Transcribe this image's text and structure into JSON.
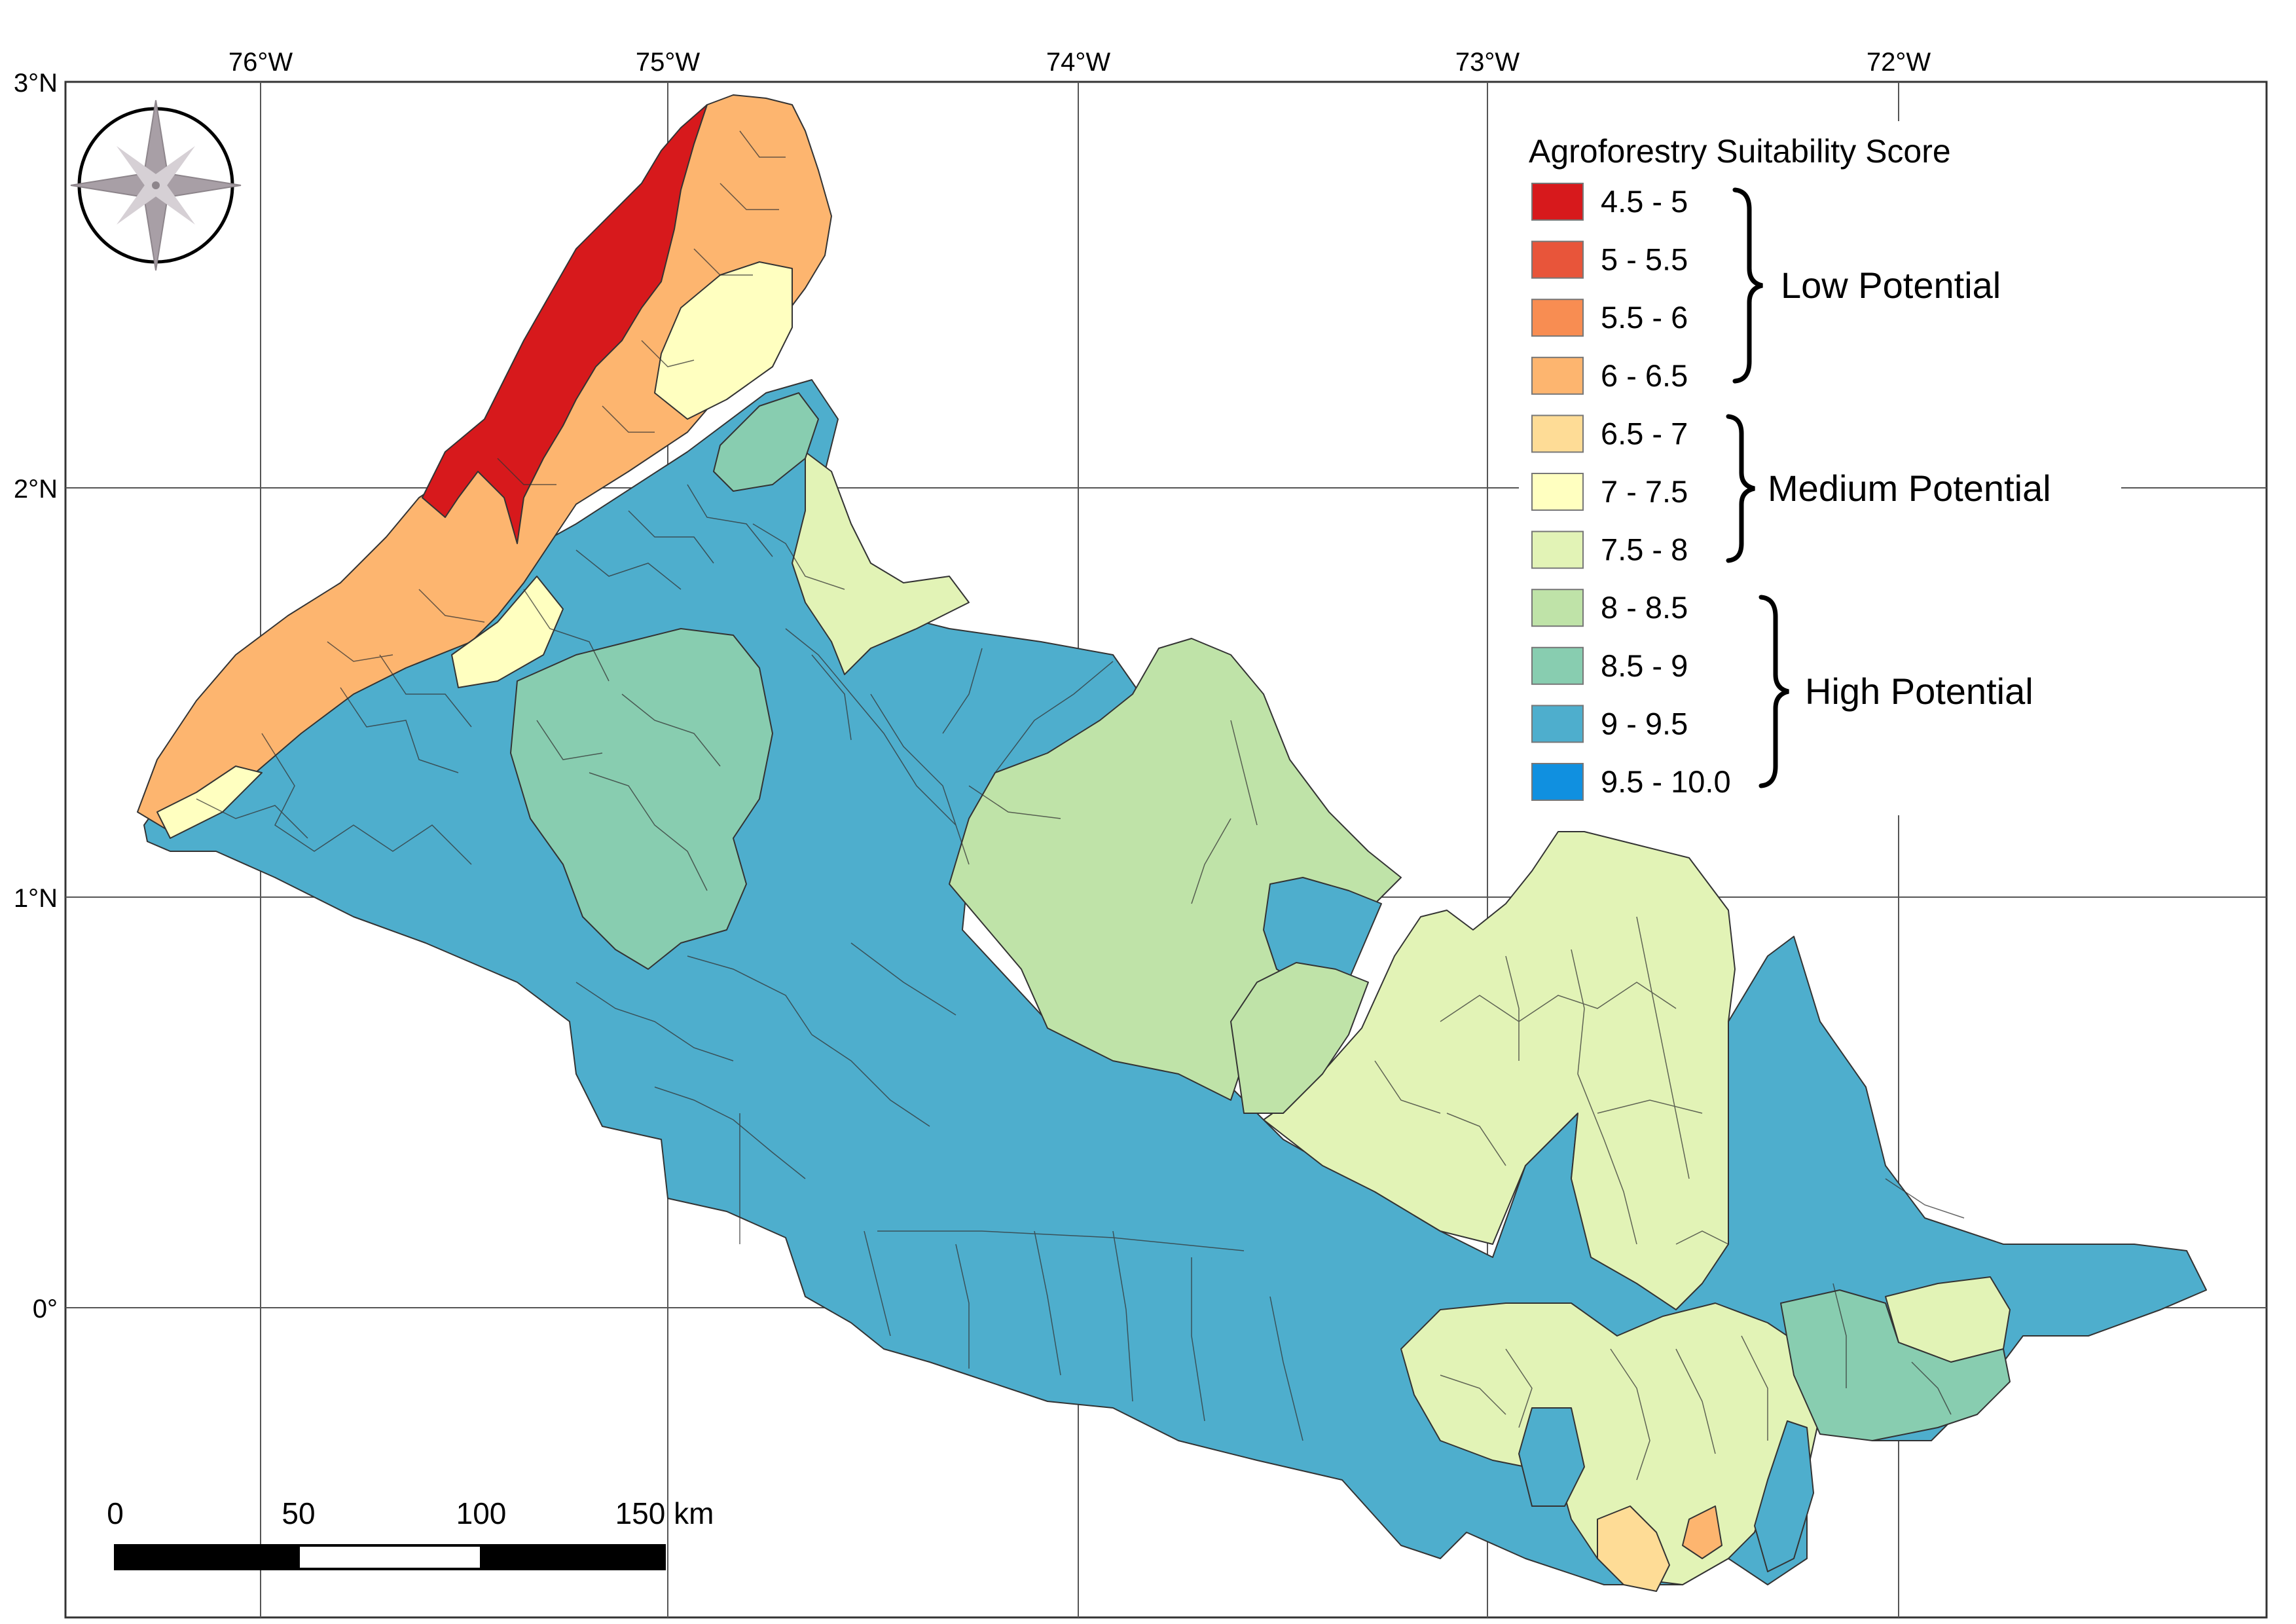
{
  "legend": {
    "title": "Agroforestry Suitability Score",
    "classes": [
      {
        "label": "4.5 - 5",
        "color": "#d7191c"
      },
      {
        "label": "5 - 5.5",
        "color": "#e8553a"
      },
      {
        "label": "5.5 - 6",
        "color": "#f88d52"
      },
      {
        "label": "6 - 6.5",
        "color": "#fdb56f"
      },
      {
        "label": "6.5 - 7",
        "color": "#fedc96"
      },
      {
        "label": "7 - 7.5",
        "color": "#ffffc0"
      },
      {
        "label": "7.5 - 8",
        "color": "#e2f3b6"
      },
      {
        "label": "8 - 8.5",
        "color": "#bfe3a8"
      },
      {
        "label": "8.5 - 9",
        "color": "#88cdb0"
      },
      {
        "label": "9 - 9.5",
        "color": "#4eaecd"
      },
      {
        "label": "9.5 - 10.0",
        "color": "#1090e0"
      }
    ],
    "groups": [
      {
        "label": "Low Potential"
      },
      {
        "label": "Medium Potential"
      },
      {
        "label": "High Potential"
      }
    ]
  },
  "axes": {
    "top_ticks": [
      "76°W",
      "75°W",
      "74°W",
      "73°W",
      "72°W"
    ],
    "left_ticks": [
      "3°N",
      "2°N",
      "1°N",
      "0°"
    ]
  },
  "scale_bar": {
    "labels": [
      "0",
      "50",
      "100",
      "150 km"
    ]
  },
  "icons": {
    "north": "compass-rose-icon"
  }
}
